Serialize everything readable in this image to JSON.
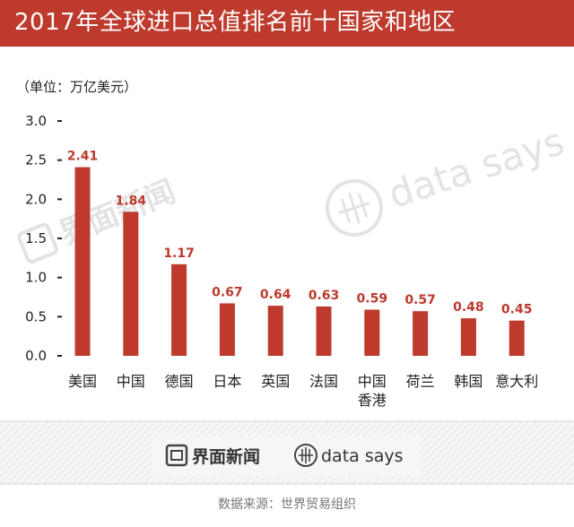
{
  "header": {
    "title": "2017年全球进口总值排名前十国家和地区"
  },
  "unit_label": "（单位：万亿美元）",
  "brand": {
    "jiemian": "界面新闻",
    "datasays": "data says"
  },
  "source": "数据来源：世界贸易组织",
  "colors": {
    "accent": "#bd3a2c",
    "text": "#222222",
    "watermark": "#e3e3e3"
  },
  "chart_data": {
    "type": "bar",
    "title": "2017年全球进口总值排名前十国家和地区",
    "ylabel": "万亿美元",
    "xlabel": "",
    "ylim": [
      0,
      3.0
    ],
    "yticks": [
      {
        "value": 0.0,
        "label": "0.0"
      },
      {
        "value": 0.5,
        "label": "0.5"
      },
      {
        "value": 1.0,
        "label": "1.0"
      },
      {
        "value": 1.5,
        "label": "1.5"
      },
      {
        "value": 2.0,
        "label": "2.0"
      },
      {
        "value": 2.5,
        "label": "2.5"
      },
      {
        "value": 3.0,
        "label": "3.0"
      }
    ],
    "categories": [
      [
        "美国"
      ],
      [
        "中国"
      ],
      [
        "德国"
      ],
      [
        "日本"
      ],
      [
        "英国"
      ],
      [
        "法国"
      ],
      [
        "中国",
        "香港"
      ],
      [
        "荷兰"
      ],
      [
        "韩国"
      ],
      [
        "意大利"
      ]
    ],
    "values": [
      2.41,
      1.84,
      1.17,
      0.67,
      0.64,
      0.63,
      0.59,
      0.57,
      0.48,
      0.45
    ],
    "value_labels": [
      "2.41",
      "1.84",
      "1.17",
      "0.67",
      "0.64",
      "0.63",
      "0.59",
      "0.57",
      "0.48",
      "0.45"
    ],
    "grid": false,
    "legend": "none"
  }
}
